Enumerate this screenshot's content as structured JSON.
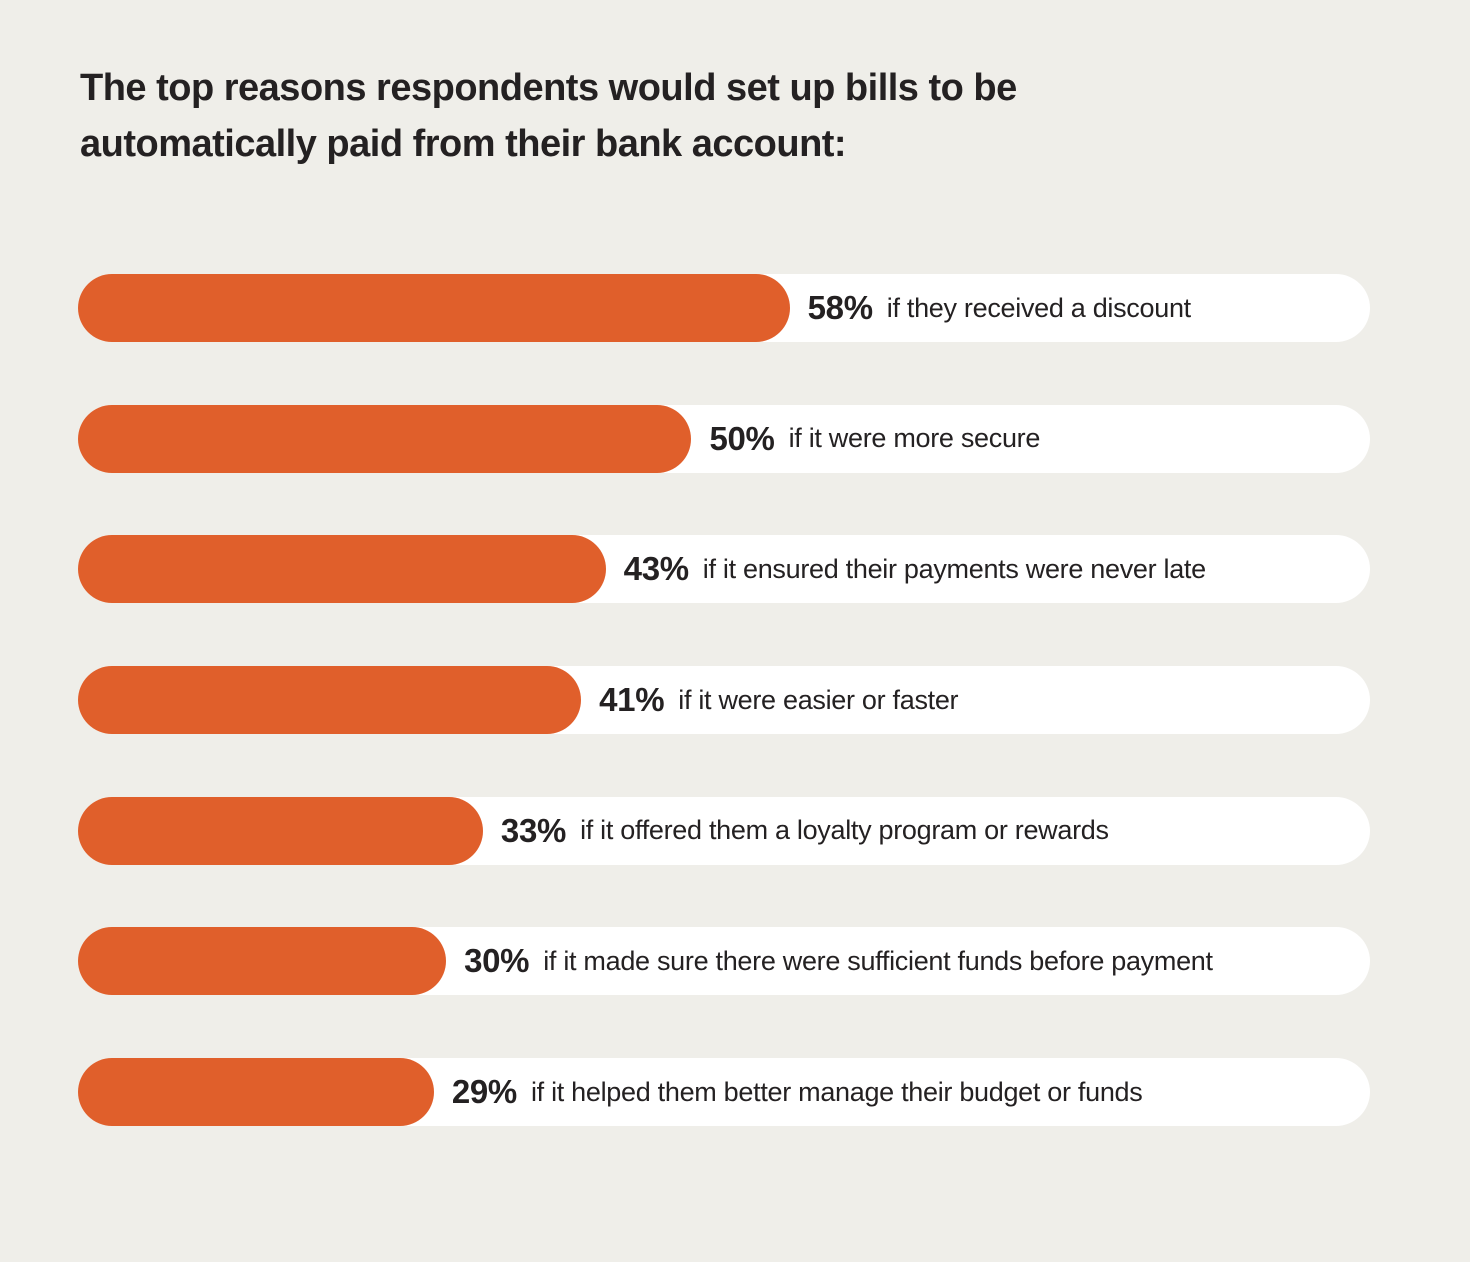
{
  "header": {
    "title_line1": "The top reasons respondents would set up bills to be",
    "title_line2": "automatically paid from their bank account:"
  },
  "colors": {
    "background": "#EFEEE9",
    "track": "#FFFFFF",
    "bar": "#E05F2B",
    "text": "#242122"
  },
  "chart_data": {
    "type": "bar",
    "orientation": "horizontal",
    "title": "The top reasons respondents would set up bills to be automatically paid from their bank account:",
    "unit": "%",
    "categories": [
      "if they received a discount",
      "if it were more secure",
      "if it ensured their payments were never late",
      "if it were easier or faster",
      "if it offered them a loyalty program or rewards",
      "if it made sure there were sufficient funds before payment",
      "if it helped them better manage their budget or funds"
    ],
    "values": [
      58,
      50,
      43,
      41,
      33,
      30,
      29
    ],
    "value_labels": [
      "58%",
      "50%",
      "43%",
      "41%",
      "33%",
      "30%",
      "29%"
    ],
    "xlim": [
      0,
      105.3
    ],
    "grid": false,
    "legend": false
  }
}
